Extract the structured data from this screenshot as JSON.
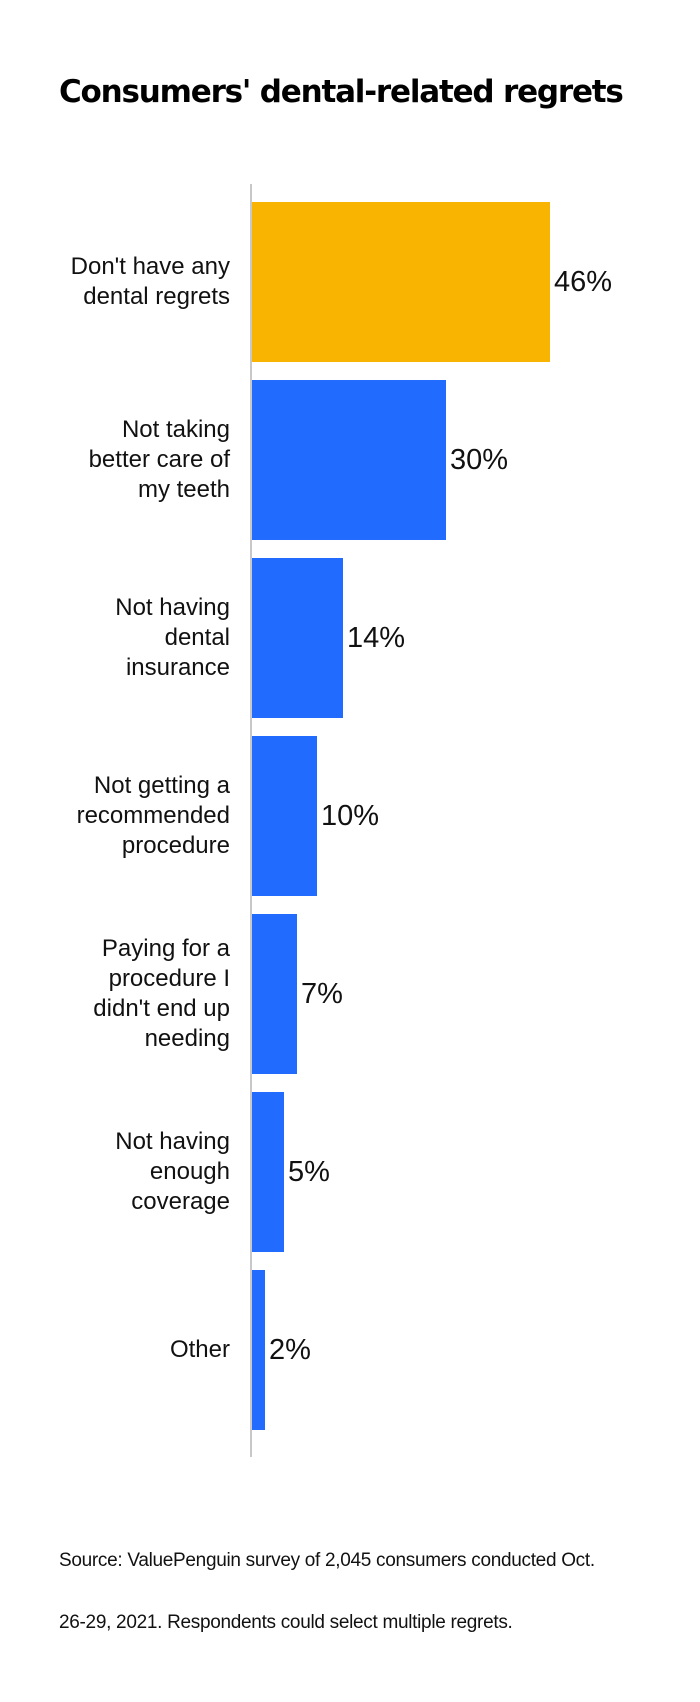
{
  "title": "Consumers' dental-related regrets",
  "source": {
    "line1": "Source: ValuePenguin survey of 2,045 consumers conducted Oct.",
    "line2": "26-29, 2021. Respondents could select multiple regrets."
  },
  "colors": {
    "highlight": "#F8B400",
    "bar": "#216CFF",
    "axis": "#C8C8C8"
  },
  "bars": [
    {
      "label": "Don't have any\ndental regrets",
      "value": "46%",
      "pct": 46,
      "color": "#F8B400"
    },
    {
      "label": "Not taking\nbetter care of\nmy teeth",
      "value": "30%",
      "pct": 30,
      "color": "#216CFF"
    },
    {
      "label": "Not having\ndental\ninsurance",
      "value": "14%",
      "pct": 14,
      "color": "#216CFF"
    },
    {
      "label": "Not getting a\nrecommended\nprocedure",
      "value": "10%",
      "pct": 10,
      "color": "#216CFF"
    },
    {
      "label": "Paying for a\nprocedure I\ndidn't end up\nneeding",
      "value": "7%",
      "pct": 7,
      "color": "#216CFF"
    },
    {
      "label": "Not having\nenough\ncoverage",
      "value": "5%",
      "pct": 5,
      "color": "#216CFF"
    },
    {
      "label": "Other",
      "value": "2%",
      "pct": 2,
      "color": "#216CFF"
    }
  ],
  "chart_data": {
    "type": "bar",
    "orientation": "horizontal",
    "title": "Consumers' dental-related regrets",
    "categories": [
      "Don't have any dental regrets",
      "Not taking better care of my teeth",
      "Not having dental insurance",
      "Not getting a recommended procedure",
      "Paying for a procedure I didn't end up needing",
      "Not having enough coverage",
      "Other"
    ],
    "values": [
      46,
      30,
      14,
      10,
      7,
      5,
      2
    ],
    "data_labels": [
      "46%",
      "30%",
      "14%",
      "10%",
      "7%",
      "5%",
      "2%"
    ],
    "xlabel": "",
    "ylabel": "",
    "unit": "%",
    "xlim": [
      0,
      46
    ],
    "grid": false,
    "legend": null,
    "highlight_category": "Don't have any dental regrets",
    "annotations": [
      "Source: ValuePenguin survey of 2,045 consumers conducted Oct. 26-29, 2021. Respondents could select multiple regrets."
    ]
  }
}
